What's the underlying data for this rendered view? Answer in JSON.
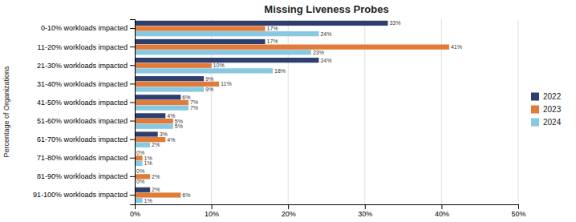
{
  "chart_data": {
    "type": "bar",
    "orientation": "horizontal",
    "title": "Missing Liveness Probes",
    "ylabel": "Percentage of Organizations",
    "categories": [
      "0-10% workloads impacted",
      "11-20% workloads impacted",
      "21-30% workloads impacted",
      "31-40% workloads impacted",
      "41-50% workloads impacted",
      "51-60% workloads impacted",
      "61-70% workloads impacted",
      "71-80% workloads impacted",
      "81-90% workloads impacted",
      "91-100% workloads impacted"
    ],
    "series": [
      {
        "name": "2022",
        "color": "#2e3f6e",
        "values": [
          0.33,
          0.17,
          0.24,
          0.09,
          0.06,
          0.04,
          0.03,
          0.0,
          0.0,
          0.02
        ],
        "value_labels": [
          "33%",
          "17%",
          "24%",
          "9%",
          "6%",
          "4%",
          "3%",
          "0%",
          "0%",
          "2%"
        ]
      },
      {
        "name": "2023",
        "color": "#e07b39",
        "values": [
          0.17,
          0.41,
          0.1,
          0.11,
          0.07,
          0.05,
          0.04,
          0.01,
          0.02,
          0.06
        ],
        "value_labels": [
          "17%",
          "41%",
          "10%",
          "11%",
          "7%",
          "5%",
          "4%",
          "1%",
          "2%",
          "6%"
        ]
      },
      {
        "name": "2024",
        "color": "#88c8e0",
        "values": [
          0.24,
          0.23,
          0.18,
          0.09,
          0.07,
          0.05,
          0.02,
          0.01,
          0.0,
          0.01
        ],
        "value_labels": [
          "24%",
          "23%",
          "18%",
          "9%",
          "7%",
          "5%",
          "2%",
          "1%",
          "0%",
          "1%"
        ]
      }
    ],
    "xlim": [
      0,
      0.5
    ],
    "xticks": [
      {
        "value": 0,
        "label": "0%"
      },
      {
        "value": 0.1,
        "label": "10%"
      },
      {
        "value": 0.2,
        "label": "20%"
      },
      {
        "value": 0.3,
        "label": "30%"
      },
      {
        "value": 0.4,
        "label": "40%"
      },
      {
        "value": 0.5,
        "label": "50%"
      }
    ],
    "grid": true,
    "legend": "right",
    "data_labels": true
  }
}
